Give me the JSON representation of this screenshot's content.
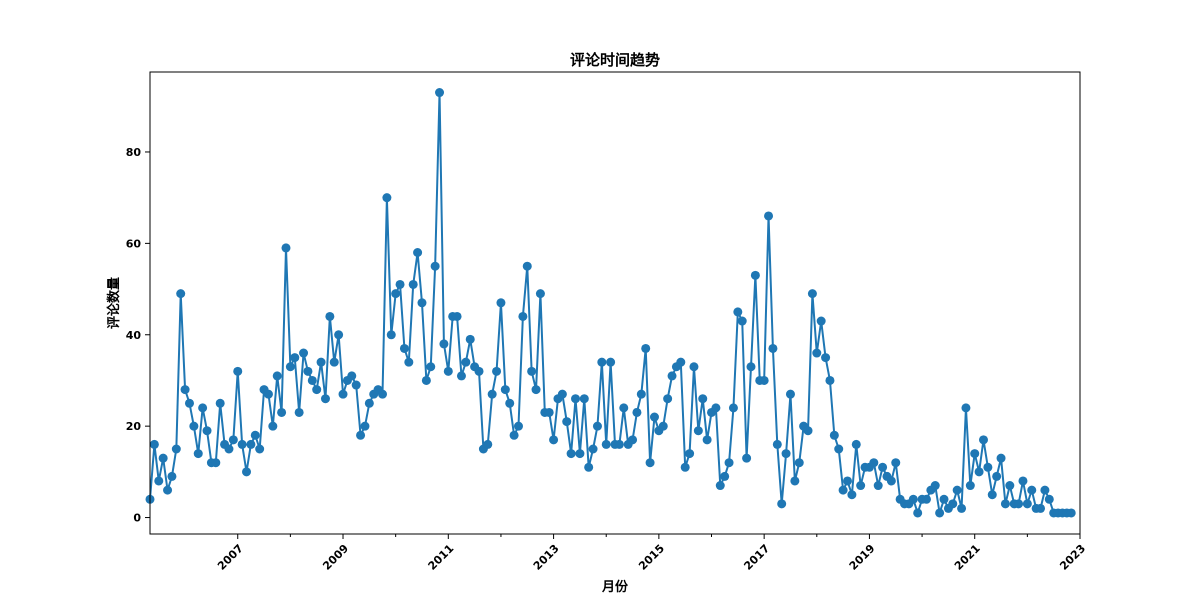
{
  "chart_data": {
    "type": "line",
    "title": "评论时间趋势",
    "xlabel": "月份",
    "ylabel": "评论数量",
    "x_type": "date",
    "x_start": "2005-05",
    "x_end": "2023-01",
    "xlim": [
      "2005-05",
      "2023-01"
    ],
    "ylim": [
      -3.6,
      97.5
    ],
    "x_ticks": [
      {
        "date": "2007-01",
        "label": "2007"
      },
      {
        "date": "2009-01",
        "label": "2009"
      },
      {
        "date": "2011-01",
        "label": "2011"
      },
      {
        "date": "2013-01",
        "label": "2013"
      },
      {
        "date": "2015-01",
        "label": "2015"
      },
      {
        "date": "2017-01",
        "label": "2017"
      },
      {
        "date": "2019-01",
        "label": "2019"
      },
      {
        "date": "2021-01",
        "label": "2021"
      },
      {
        "date": "2023-01",
        "label": "2023"
      }
    ],
    "x_minor_ticks": [
      "2008-01",
      "2010-01",
      "2012-01",
      "2014-01",
      "2016-01",
      "2018-01",
      "2020-01",
      "2022-01"
    ],
    "y_ticks": [
      0,
      20,
      40,
      60,
      80
    ],
    "grid": false,
    "series": [
      {
        "color": "#1f77b4",
        "marker": "circle",
        "values": [
          4,
          16,
          8,
          13,
          6,
          9,
          15,
          49,
          28,
          25,
          20,
          14,
          24,
          19,
          12,
          12,
          25,
          16,
          15,
          17,
          32,
          16,
          10,
          16,
          18,
          15,
          28,
          27,
          20,
          31,
          23,
          59,
          33,
          35,
          23,
          36,
          32,
          30,
          28,
          34,
          26,
          44,
          34,
          40,
          27,
          30,
          31,
          29,
          18,
          20,
          25,
          27,
          28,
          27,
          70,
          40,
          49,
          51,
          37,
          34,
          51,
          58,
          47,
          30,
          33,
          55,
          93,
          38,
          32,
          44,
          44,
          31,
          34,
          39,
          33,
          32,
          15,
          16,
          27,
          32,
          47,
          28,
          25,
          18,
          20,
          44,
          55,
          32,
          28,
          49,
          23,
          23,
          17,
          26,
          27,
          21,
          14,
          26,
          14,
          26,
          11,
          15,
          20,
          34,
          16,
          34,
          16,
          16,
          24,
          16,
          17,
          23,
          27,
          37,
          12,
          22,
          19,
          20,
          26,
          31,
          33,
          34,
          11,
          14,
          33,
          19,
          26,
          17,
          23,
          24,
          7,
          9,
          12,
          24,
          45,
          43,
          13,
          33,
          53,
          30,
          30,
          66,
          37,
          16,
          3,
          14,
          27,
          8,
          12,
          20,
          19,
          49,
          36,
          43,
          35,
          30,
          18,
          15,
          6,
          8,
          5,
          16,
          7,
          11,
          11,
          12,
          7,
          11,
          9,
          8,
          12,
          4,
          3,
          3,
          4,
          1,
          4,
          4,
          6,
          7,
          1,
          4,
          2,
          3,
          6,
          2,
          24,
          7,
          14,
          10,
          17,
          11,
          5,
          9,
          13,
          3,
          7,
          3,
          3,
          8,
          3,
          6,
          2,
          2,
          6,
          4,
          1,
          1,
          1,
          1,
          1
        ]
      }
    ]
  }
}
